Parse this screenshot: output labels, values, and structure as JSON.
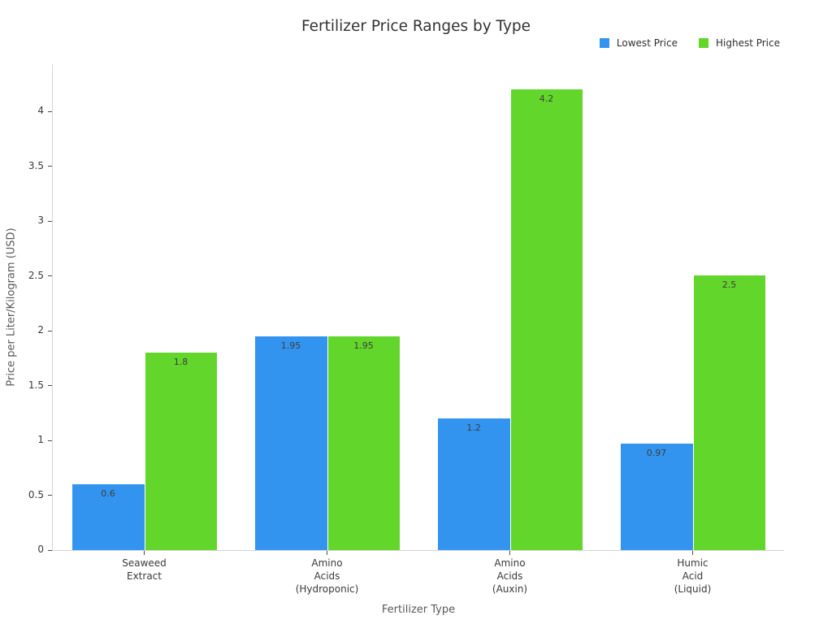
{
  "chart_data": {
    "type": "bar",
    "title": "Fertilizer Price Ranges by Type",
    "xlabel": "Fertilizer Type",
    "ylabel": "Price per Liter/Kilogram (USD)",
    "categories": [
      [
        "Seaweed",
        "Extract"
      ],
      [
        "Amino",
        "Acids",
        "(Hydroponic)"
      ],
      [
        "Amino",
        "Acids",
        "(Auxin)"
      ],
      [
        "Humic",
        "Acid",
        "(Liquid)"
      ]
    ],
    "series": [
      {
        "name": "Lowest Price",
        "color": "#3394F0",
        "values": [
          0.6,
          1.95,
          1.2,
          0.97
        ]
      },
      {
        "name": "Highest Price",
        "color": "#62D62B",
        "values": [
          1.8,
          1.95,
          4.2,
          2.5
        ]
      }
    ],
    "value_labels": {
      "lowest": [
        "0.6",
        "1.95",
        "1.2",
        "0.97"
      ],
      "highest": [
        "1.8",
        "1.95",
        "4.2",
        "2.5"
      ]
    },
    "yticks": [
      "0",
      "0.5",
      "1",
      "1.5",
      "2",
      "2.5",
      "3",
      "3.5",
      "4"
    ],
    "ylim": [
      0,
      4.43
    ],
    "grid": false,
    "legend_position": "top-right",
    "colors": {
      "axis_line": "#d4d4d4",
      "tick_mark": "#4d4d4d",
      "tick_label": "#3a3a3a",
      "title_text": "#333333",
      "axis_title_text": "#595959",
      "value_label_text": "#3d3d3d",
      "background": "#ffffff"
    }
  }
}
